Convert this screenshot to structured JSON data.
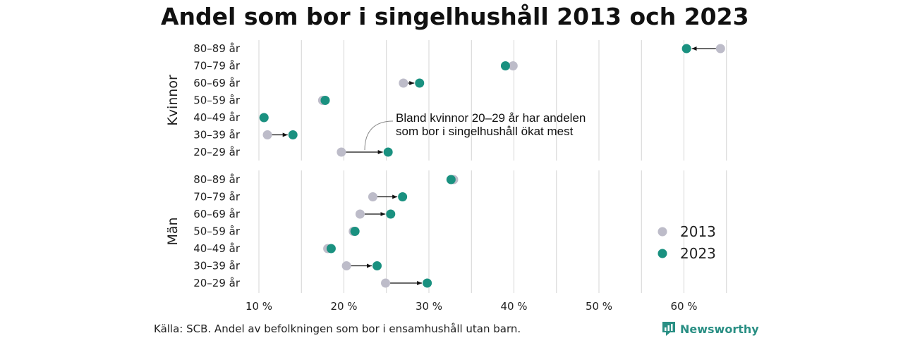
{
  "chart_data": {
    "type": "dumbbell",
    "title": "Andel som bor i singelhushåll 2013 och 2023",
    "source": "Källa: SCB. Andel av befolkningen som bor i ensamhushåll utan barn.",
    "brand": "Newsworthy",
    "x_ticks": [
      10,
      20,
      30,
      40,
      50,
      60
    ],
    "x_tick_labels": [
      "10 %",
      "20 %",
      "30 %",
      "40 %",
      "50 %",
      "60 %"
    ],
    "xlim": [
      10,
      65
    ],
    "grid": "vertical",
    "legend": {
      "placement": "right",
      "items": [
        {
          "label": "2013",
          "color": "#bdbcc9"
        },
        {
          "label": "2023",
          "color": "#1a9180"
        }
      ]
    },
    "annotation": {
      "lines": [
        "Bland kvinnor 20–29 år har andelen",
        "som bor i singelhushåll ökat mest"
      ],
      "panel": "Kvinnor",
      "category": "20–29 år"
    },
    "panels": [
      {
        "name": "Kvinnor",
        "categories": [
          "80–89 år",
          "70–79 år",
          "60–69 år",
          "50–59 år",
          "40–49 år",
          "30–39 år",
          "20–29 år"
        ],
        "values_2013": [
          64.3,
          39.9,
          27.0,
          17.5,
          10.6,
          11.0,
          19.7
        ],
        "values_2023": [
          60.3,
          39.0,
          28.9,
          17.8,
          10.6,
          14.0,
          25.2
        ]
      },
      {
        "name": "Män",
        "categories": [
          "80–89 år",
          "70–79 år",
          "60–69 år",
          "50–59 år",
          "40–49 år",
          "30–39 år",
          "20–29 år"
        ],
        "values_2013": [
          32.9,
          23.4,
          21.9,
          21.1,
          18.1,
          20.3,
          24.9
        ],
        "values_2023": [
          32.6,
          26.9,
          25.5,
          21.3,
          18.5,
          23.9,
          29.8
        ]
      }
    ]
  }
}
